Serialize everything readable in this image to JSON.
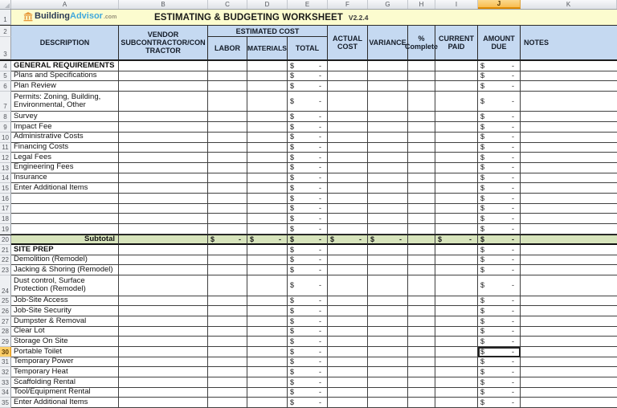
{
  "spreadsheet": {
    "column_letters": [
      "A",
      "B",
      "C",
      "D",
      "E",
      "F",
      "G",
      "H",
      "I",
      "J",
      "K"
    ],
    "gutter_rows": [
      "1",
      "2",
      "3"
    ],
    "selected": {
      "column": "J",
      "row": 30,
      "cell": "J30"
    },
    "currency_symbol": "$",
    "zero_display": "-",
    "money_columns": {
      "item": [
        "E",
        "J"
      ],
      "subtotal": [
        "C",
        "D",
        "E",
        "F",
        "G",
        "I",
        "J"
      ]
    }
  },
  "title_bar": {
    "logo": {
      "brand_primary": "Building",
      "brand_secondary": "Advisor",
      "suffix": ".com"
    },
    "title": "ESTIMATING & BUDGETING WORKSHEET",
    "version": "V2.2.4"
  },
  "header": {
    "description": "DESCRIPTION",
    "vendor_line1": "VENDOR",
    "vendor_line2": "SUBCONTRACTOR/CONTRACTOR",
    "estimated_cost_group": "ESTIMATED COST",
    "labor": "LABOR",
    "materials": "MATERIALS",
    "total": "TOTAL",
    "actual_cost": "ACTUAL COST",
    "variance": "VARIANCE",
    "pct_complete": "% Complete",
    "current_paid": "CURRENT PAID",
    "amount_due": "AMOUNT DUE",
    "notes": "NOTES"
  },
  "rows": [
    {
      "num": 4,
      "label": "GENERAL REQUIREMENTS",
      "type": "section"
    },
    {
      "num": 5,
      "label": "Plans and Specifications",
      "type": "item"
    },
    {
      "num": 6,
      "label": "Plan Review",
      "type": "item"
    },
    {
      "num": 7,
      "label": "Permits: Zoning, Building, Environmental, Other",
      "type": "item",
      "tall": true
    },
    {
      "num": 8,
      "label": "Survey",
      "type": "item"
    },
    {
      "num": 9,
      "label": "Impact Fee",
      "type": "item"
    },
    {
      "num": 10,
      "label": "Administrative Costs",
      "type": "item"
    },
    {
      "num": 11,
      "label": "Financing Costs",
      "type": "item"
    },
    {
      "num": 12,
      "label": "Legal Fees",
      "type": "item"
    },
    {
      "num": 13,
      "label": "Engineering Fees",
      "type": "item"
    },
    {
      "num": 14,
      "label": "Insurance",
      "type": "item"
    },
    {
      "num": 15,
      "label": "Enter Additional Items",
      "type": "item"
    },
    {
      "num": 16,
      "label": "",
      "type": "item"
    },
    {
      "num": 17,
      "label": "",
      "type": "item"
    },
    {
      "num": 18,
      "label": "",
      "type": "item"
    },
    {
      "num": 19,
      "label": "",
      "type": "item"
    },
    {
      "num": 20,
      "label": "Subtotal",
      "type": "subtotal"
    },
    {
      "num": 21,
      "label": "SITE PREP",
      "type": "section"
    },
    {
      "num": 22,
      "label": "Demolition (Remodel)",
      "type": "item"
    },
    {
      "num": 23,
      "label": "Jacking & Shoring (Remodel)",
      "type": "item"
    },
    {
      "num": 24,
      "label": "Dust control, Surface Protection (Remodel)",
      "type": "item",
      "tall": true
    },
    {
      "num": 25,
      "label": "Job-Site Access",
      "type": "item"
    },
    {
      "num": 26,
      "label": "Job-Site Security",
      "type": "item"
    },
    {
      "num": 27,
      "label": "Dumpster & Removal",
      "type": "item"
    },
    {
      "num": 28,
      "label": "Clear Lot",
      "type": "item"
    },
    {
      "num": 29,
      "label": "Storage On Site",
      "type": "item"
    },
    {
      "num": 30,
      "label": "Portable Toilet",
      "type": "item"
    },
    {
      "num": 31,
      "label": "Temporary Power",
      "type": "item"
    },
    {
      "num": 32,
      "label": "Temporary Heat",
      "type": "item"
    },
    {
      "num": 33,
      "label": "Scaffolding Rental",
      "type": "item"
    },
    {
      "num": 34,
      "label": "Tool/Equipment Rental",
      "type": "item"
    },
    {
      "num": 35,
      "label": "Enter Additional Items",
      "type": "item"
    }
  ]
}
